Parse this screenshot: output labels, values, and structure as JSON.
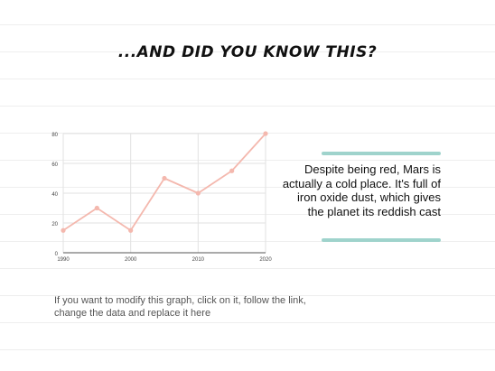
{
  "slide": {
    "title": "...AND DID YOU KNOW THIS?",
    "fact": "Despite being red, Mars is actually a cold place. It's full of iron oxide dust, which gives the planet its reddish cast",
    "instructions": "If you want to modify this graph, click on it, follow the link, change the data and replace it here"
  },
  "colors": {
    "line": "#f4b8ae",
    "accent": "#9fd3cc"
  },
  "chart_data": {
    "type": "line",
    "title": "",
    "xlabel": "",
    "ylabel": "",
    "x": [
      1990,
      1995,
      2000,
      2005,
      2010,
      2015,
      2020
    ],
    "values": [
      15,
      30,
      15,
      50,
      40,
      55,
      80
    ],
    "xticks": [
      1990,
      2000,
      2010,
      2020
    ],
    "yticks": [
      0,
      20,
      40,
      60,
      80
    ],
    "xlim": [
      1990,
      2020
    ],
    "ylim": [
      0,
      80
    ],
    "grid": true,
    "legend": false
  }
}
